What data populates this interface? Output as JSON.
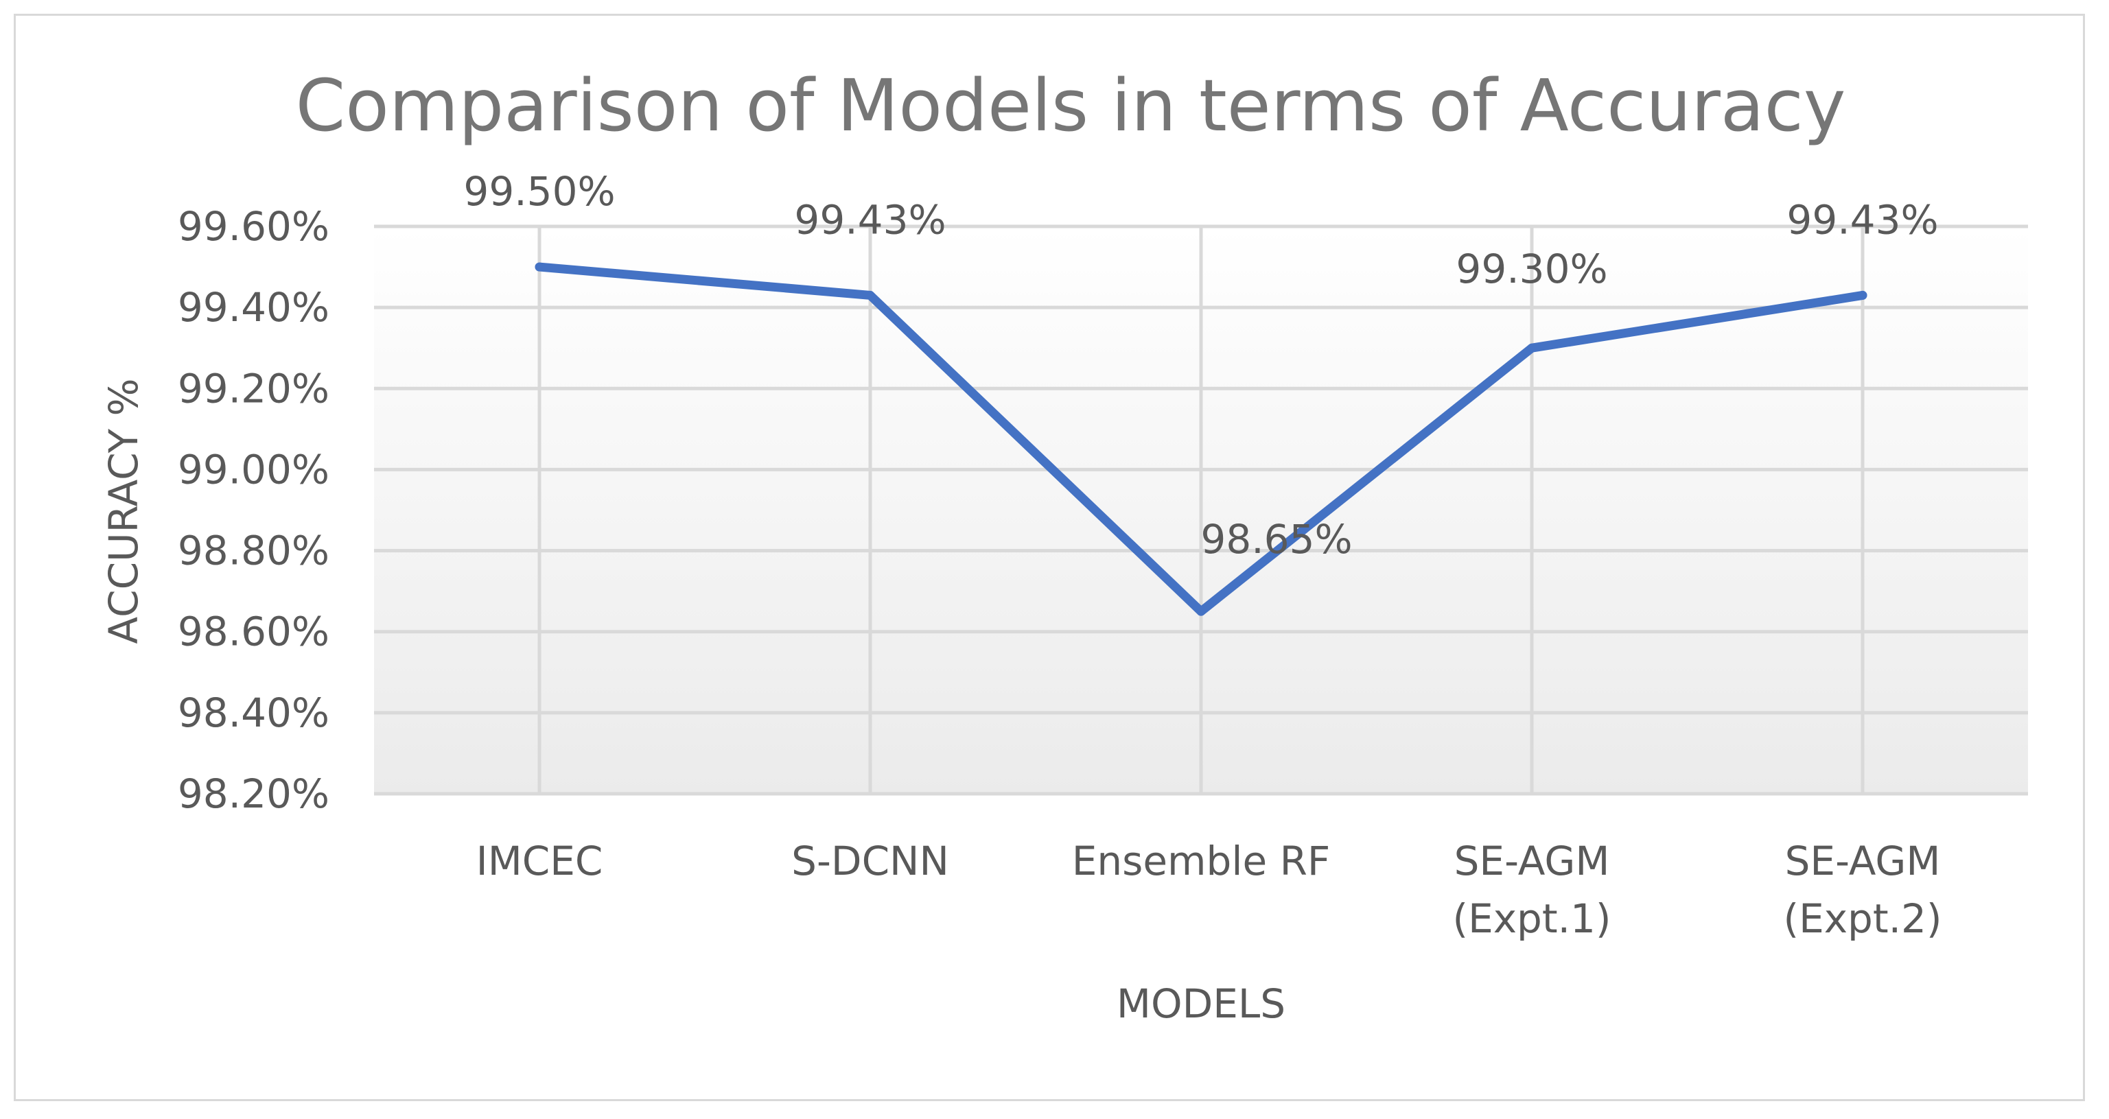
{
  "chart_data": {
    "type": "line",
    "title": "Comparison of Models in terms of Accuracy",
    "xlabel": "MODELS",
    "ylabel": "ACCURACY %",
    "categories": [
      [
        "IMCEC"
      ],
      [
        "S-DCNN"
      ],
      [
        "Ensemble RF"
      ],
      [
        "SE-AGM",
        "(Expt.1)"
      ],
      [
        "SE-AGM",
        "(Expt.2)"
      ]
    ],
    "series": [
      {
        "name": "Accuracy",
        "values": [
          99.5,
          99.43,
          98.65,
          99.3,
          99.43
        ],
        "labels": [
          "99.50%",
          "99.43%",
          "98.65%",
          "99.30%",
          "99.43%"
        ],
        "color": "#4472c4"
      }
    ],
    "ylim": [
      98.2,
      99.6
    ],
    "yticks": [
      98.2,
      98.4,
      98.6,
      98.8,
      99.0,
      99.2,
      99.4,
      99.6
    ],
    "ytick_labels": [
      "98.20%",
      "98.40%",
      "98.60%",
      "98.80%",
      "99.00%",
      "99.20%",
      "99.40%",
      "99.60%"
    ],
    "grid": true,
    "colors": {
      "grid": "#d9d9d9",
      "plot_bg_top": "#ffffff",
      "plot_bg_bottom": "#ebebeb",
      "text": "#595959",
      "title": "#767676"
    }
  }
}
